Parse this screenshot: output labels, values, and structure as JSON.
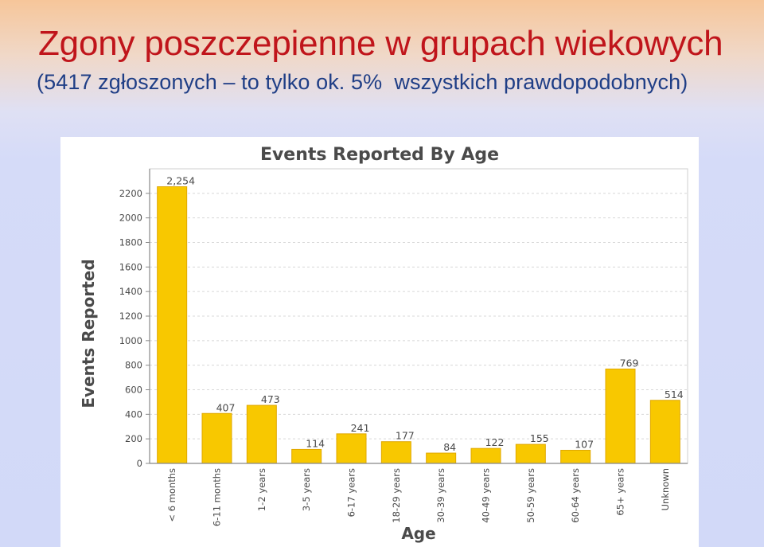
{
  "slide": {
    "title": "Zgony poszczepienne w grupach wiekowych",
    "subtitle": "(5417 zgłoszonych – to tylko ok. 5%  wszystkich prawdopodobnych)"
  },
  "colors": {
    "bar_fill": "#f8c800",
    "bar_stroke": "#e0a800",
    "title_color": "#c0151b",
    "subtitle_color": "#1f3e86",
    "grid_color": "#d8d8d8",
    "axis_color": "#888888",
    "text_color": "#4a4a4a"
  },
  "chart_data": {
    "type": "bar",
    "title": "Events Reported By Age",
    "xlabel": "Age",
    "ylabel": "Events Reported",
    "categories": [
      "< 6 months",
      "6-11 months",
      "1-2 years",
      "3-5 years",
      "6-17 years",
      "18-29 years",
      "30-39 years",
      "40-49 years",
      "50-59 years",
      "60-64 years",
      "65+ years",
      "Unknown"
    ],
    "values": [
      2254,
      407,
      473,
      114,
      241,
      177,
      84,
      122,
      155,
      107,
      769,
      514
    ],
    "value_labels": [
      "2,254",
      "407",
      "473",
      "114",
      "241",
      "177",
      "84",
      "122",
      "155",
      "107",
      "769",
      "514"
    ],
    "yticks": [
      0,
      200,
      400,
      600,
      800,
      1000,
      1200,
      1400,
      1600,
      1800,
      2000,
      2200
    ],
    "ylim": [
      0,
      2400
    ],
    "grid": true
  }
}
